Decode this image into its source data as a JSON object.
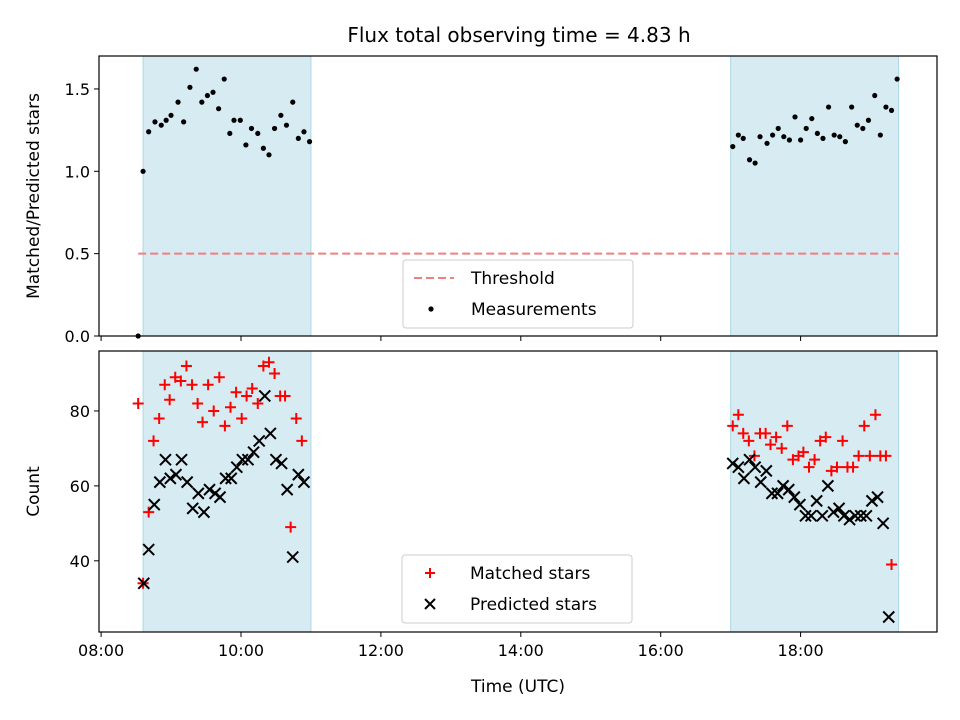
{
  "title": "Flux total observing time = 4.83 h",
  "chart_data": [
    {
      "type": "scatter",
      "panel": "top",
      "ylabel": "Matched/Predicted stars",
      "xlabel": "",
      "x_unit": "hours UTC",
      "xlim": [
        7.97,
        19.95
      ],
      "ylim": [
        0.0,
        1.7
      ],
      "yticks": [
        0.0,
        0.5,
        1.0,
        1.5
      ],
      "ytick_labels": [
        "0.0",
        "0.5",
        "1.0",
        "1.5"
      ],
      "shaded_intervals": [
        [
          8.6,
          11.0
        ],
        [
          17.0,
          19.4
        ]
      ],
      "threshold": {
        "name": "Threshold",
        "y": 0.5,
        "x_range": [
          8.53,
          19.4
        ],
        "color": "#f08080"
      },
      "legend": {
        "placement": "lower-center",
        "entries": [
          "Threshold",
          "Measurements"
        ]
      },
      "series": [
        {
          "name": "Measurements",
          "marker": "dot",
          "color": "#000000",
          "points": [
            [
              8.53,
              0.0
            ],
            [
              8.6,
              1.0
            ],
            [
              8.68,
              1.24
            ],
            [
              8.77,
              1.3
            ],
            [
              8.86,
              1.28
            ],
            [
              8.93,
              1.31
            ],
            [
              9.0,
              1.34
            ],
            [
              9.1,
              1.42
            ],
            [
              9.18,
              1.3
            ],
            [
              9.27,
              1.51
            ],
            [
              9.36,
              1.62
            ],
            [
              9.44,
              1.42
            ],
            [
              9.52,
              1.46
            ],
            [
              9.6,
              1.48
            ],
            [
              9.68,
              1.38
            ],
            [
              9.76,
              1.56
            ],
            [
              9.84,
              1.23
            ],
            [
              9.9,
              1.31
            ],
            [
              9.99,
              1.31
            ],
            [
              10.07,
              1.16
            ],
            [
              10.15,
              1.26
            ],
            [
              10.24,
              1.23
            ],
            [
              10.32,
              1.14
            ],
            [
              10.4,
              1.1
            ],
            [
              10.48,
              1.26
            ],
            [
              10.57,
              1.34
            ],
            [
              10.65,
              1.28
            ],
            [
              10.74,
              1.42
            ],
            [
              10.82,
              1.2
            ],
            [
              10.9,
              1.24
            ],
            [
              10.98,
              1.18
            ],
            [
              17.03,
              1.15
            ],
            [
              17.11,
              1.22
            ],
            [
              17.18,
              1.2
            ],
            [
              17.27,
              1.07
            ],
            [
              17.35,
              1.05
            ],
            [
              17.42,
              1.21
            ],
            [
              17.52,
              1.17
            ],
            [
              17.6,
              1.22
            ],
            [
              17.68,
              1.26
            ],
            [
              17.76,
              1.21
            ],
            [
              17.84,
              1.19
            ],
            [
              17.92,
              1.33
            ],
            [
              18.0,
              1.19
            ],
            [
              18.08,
              1.26
            ],
            [
              18.16,
              1.32
            ],
            [
              18.24,
              1.23
            ],
            [
              18.32,
              1.2
            ],
            [
              18.4,
              1.39
            ],
            [
              18.48,
              1.22
            ],
            [
              18.56,
              1.21
            ],
            [
              18.64,
              1.18
            ],
            [
              18.73,
              1.39
            ],
            [
              18.81,
              1.28
            ],
            [
              18.89,
              1.26
            ],
            [
              18.97,
              1.31
            ],
            [
              19.06,
              1.46
            ],
            [
              19.14,
              1.22
            ],
            [
              19.22,
              1.39
            ],
            [
              19.3,
              1.37
            ],
            [
              19.38,
              1.56
            ]
          ]
        }
      ]
    },
    {
      "type": "scatter",
      "panel": "bottom",
      "ylabel": "Count",
      "xlabel": "Time (UTC)",
      "x_unit": "hours UTC",
      "xlim": [
        7.97,
        19.95
      ],
      "ylim": [
        21,
        96
      ],
      "yticks": [
        40,
        60,
        80
      ],
      "ytick_labels": [
        "40",
        "60",
        "80"
      ],
      "xticks": [
        8,
        10,
        12,
        14,
        16,
        18
      ],
      "xtick_labels": [
        "08:00",
        "10:00",
        "12:00",
        "14:00",
        "16:00",
        "18:00"
      ],
      "shaded_intervals": [
        [
          8.6,
          11.0
        ],
        [
          17.0,
          19.4
        ]
      ],
      "legend": {
        "placement": "lower-center",
        "entries": [
          "Matched stars",
          "Predicted stars"
        ]
      },
      "series": [
        {
          "name": "Matched stars",
          "marker": "plus",
          "color": "#ff0000",
          "points": [
            [
              8.53,
              82
            ],
            [
              8.6,
              34
            ],
            [
              8.68,
              53
            ],
            [
              8.75,
              72
            ],
            [
              8.83,
              78
            ],
            [
              8.91,
              87
            ],
            [
              8.98,
              83
            ],
            [
              9.06,
              89
            ],
            [
              9.14,
              88
            ],
            [
              9.22,
              92
            ],
            [
              9.3,
              87
            ],
            [
              9.38,
              82
            ],
            [
              9.45,
              77
            ],
            [
              9.53,
              87
            ],
            [
              9.61,
              80
            ],
            [
              9.69,
              89
            ],
            [
              9.77,
              76
            ],
            [
              9.85,
              81
            ],
            [
              9.93,
              85
            ],
            [
              10.01,
              78
            ],
            [
              10.08,
              84
            ],
            [
              10.16,
              86
            ],
            [
              10.24,
              82
            ],
            [
              10.32,
              92
            ],
            [
              10.4,
              93
            ],
            [
              10.48,
              90
            ],
            [
              10.56,
              84
            ],
            [
              10.63,
              84
            ],
            [
              10.71,
              49
            ],
            [
              10.79,
              78
            ],
            [
              10.87,
              72
            ],
            [
              17.03,
              76
            ],
            [
              17.11,
              79
            ],
            [
              17.18,
              74
            ],
            [
              17.26,
              72
            ],
            [
              17.34,
              68
            ],
            [
              17.42,
              74
            ],
            [
              17.5,
              74
            ],
            [
              17.57,
              71
            ],
            [
              17.65,
              73
            ],
            [
              17.73,
              70
            ],
            [
              17.81,
              76
            ],
            [
              17.89,
              67
            ],
            [
              17.97,
              68
            ],
            [
              18.04,
              69
            ],
            [
              18.12,
              65
            ],
            [
              18.2,
              67
            ],
            [
              18.28,
              72
            ],
            [
              18.36,
              73
            ],
            [
              18.44,
              64
            ],
            [
              18.52,
              65
            ],
            [
              18.6,
              72
            ],
            [
              18.67,
              65
            ],
            [
              18.75,
              65
            ],
            [
              18.83,
              68
            ],
            [
              18.91,
              76
            ],
            [
              18.99,
              68
            ],
            [
              19.07,
              79
            ],
            [
              19.14,
              68
            ],
            [
              19.22,
              68
            ],
            [
              19.3,
              39
            ]
          ]
        },
        {
          "name": "Predicted stars",
          "marker": "x",
          "color": "#000000",
          "points": [
            [
              8.61,
              34
            ],
            [
              8.68,
              43
            ],
            [
              8.76,
              55
            ],
            [
              8.84,
              61
            ],
            [
              8.92,
              67
            ],
            [
              8.99,
              62
            ],
            [
              9.07,
              63
            ],
            [
              9.15,
              67
            ],
            [
              9.23,
              61
            ],
            [
              9.31,
              54
            ],
            [
              9.39,
              58
            ],
            [
              9.47,
              53
            ],
            [
              9.55,
              59
            ],
            [
              9.63,
              58
            ],
            [
              9.7,
              57
            ],
            [
              9.78,
              62
            ],
            [
              9.86,
              62
            ],
            [
              9.94,
              65
            ],
            [
              10.02,
              67
            ],
            [
              10.1,
              67
            ],
            [
              10.18,
              69
            ],
            [
              10.26,
              72
            ],
            [
              10.34,
              84
            ],
            [
              10.42,
              74
            ],
            [
              10.5,
              67
            ],
            [
              10.58,
              66
            ],
            [
              10.66,
              59
            ],
            [
              10.74,
              41
            ],
            [
              10.82,
              63
            ],
            [
              10.9,
              61
            ],
            [
              17.03,
              66
            ],
            [
              17.11,
              65
            ],
            [
              17.19,
              62
            ],
            [
              17.27,
              67
            ],
            [
              17.35,
              65
            ],
            [
              17.43,
              61
            ],
            [
              17.51,
              64
            ],
            [
              17.59,
              58
            ],
            [
              17.67,
              58
            ],
            [
              17.75,
              60
            ],
            [
              17.83,
              59
            ],
            [
              17.91,
              57
            ],
            [
              17.99,
              55
            ],
            [
              18.07,
              52
            ],
            [
              18.15,
              52
            ],
            [
              18.23,
              56
            ],
            [
              18.31,
              52
            ],
            [
              18.39,
              60
            ],
            [
              18.47,
              53
            ],
            [
              18.55,
              54
            ],
            [
              18.62,
              52
            ],
            [
              18.7,
              51
            ],
            [
              18.78,
              52
            ],
            [
              18.86,
              52
            ],
            [
              18.94,
              52
            ],
            [
              19.02,
              56
            ],
            [
              19.1,
              57
            ],
            [
              19.18,
              50
            ],
            [
              19.26,
              25
            ]
          ]
        }
      ]
    }
  ]
}
